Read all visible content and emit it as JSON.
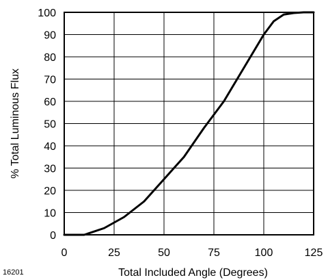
{
  "figure_number": "16201",
  "chart_data": {
    "type": "line",
    "title": "",
    "xlabel": "Total Included Angle (Degrees)",
    "ylabel": "% Total Luminous Flux",
    "xlim": [
      0,
      125
    ],
    "ylim": [
      0,
      100
    ],
    "x_ticks": [
      0,
      25,
      50,
      75,
      100,
      125
    ],
    "y_ticks": [
      0,
      10,
      20,
      30,
      40,
      50,
      60,
      70,
      80,
      90,
      100
    ],
    "grid": {
      "x": true,
      "y": true
    },
    "legend": "none",
    "colors": {
      "line": "#000000",
      "grid": "#000000"
    },
    "series": [
      {
        "x": [
          0,
          10,
          20,
          30,
          40,
          50,
          60,
          70,
          80,
          90,
          100,
          105,
          110,
          115,
          120,
          125
        ],
        "values": [
          0,
          0,
          3,
          8,
          15,
          25,
          35,
          48,
          60,
          75,
          90,
          96,
          99,
          99.7,
          100,
          100
        ]
      }
    ]
  }
}
